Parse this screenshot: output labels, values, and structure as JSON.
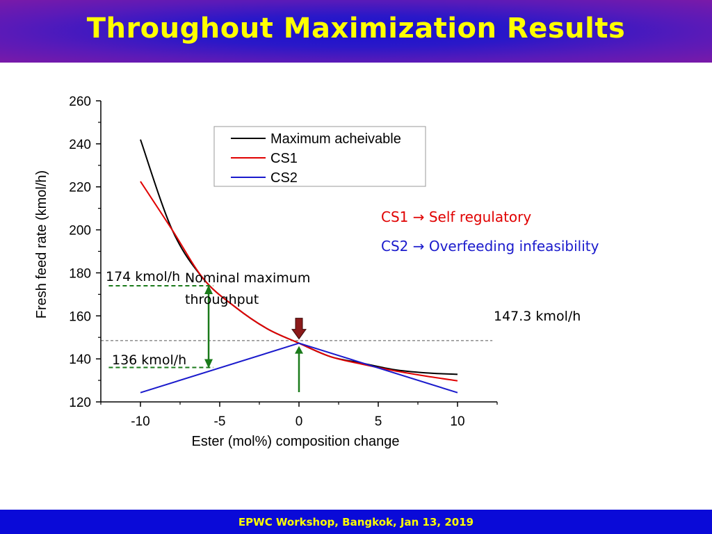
{
  "slide": {
    "title": "Throughout Maximization Results",
    "footer": "EPWC Workshop, Bangkok, Jan 13, 2019",
    "colors": {
      "title": "#ffff00",
      "footer_bg": "#0a0ad8",
      "header": "#2a18c8"
    }
  },
  "annotations": {
    "cs1": "CS1 → Self regulatory",
    "cs2": "CS2 → Overfeeding infeasibility",
    "label_174": "174 kmol/h",
    "label_136": "136 kmol/h",
    "label_147": "147.3 kmol/h",
    "nominal_line1": "Nominal maximum",
    "nominal_line2": "throughput",
    "cs1_color": "#e00000",
    "cs2_color": "#1a1acc"
  },
  "chart_data": {
    "type": "line",
    "xlabel": "Ester (mol%) composition change",
    "ylabel": "Fresh feed rate (kmol/h)",
    "xlim": [
      -12.5,
      12.5
    ],
    "ylim": [
      120,
      260
    ],
    "xticks": [
      -10,
      -5,
      0,
      5,
      10
    ],
    "yticks": [
      120,
      140,
      160,
      180,
      200,
      220,
      240,
      260
    ],
    "grid": false,
    "legend_position": "top-center",
    "nominal_level": 148.5,
    "series": [
      {
        "name": "Maximum acheivable",
        "color": "#000000",
        "x": [
          -10,
          -8,
          -6,
          -4,
          -2,
          0,
          2,
          4,
          6,
          8,
          10
        ],
        "y": [
          242,
          200,
          177,
          164,
          154,
          147.3,
          141,
          138,
          135,
          133.5,
          132.8
        ]
      },
      {
        "name": "CS1",
        "color": "#e00000",
        "x": [
          -10,
          -8,
          -6,
          -4,
          -2,
          0,
          2,
          4,
          6,
          8,
          10
        ],
        "y": [
          222.5,
          200,
          177,
          164,
          154,
          147.3,
          141,
          137.5,
          134.5,
          132,
          129.8
        ]
      },
      {
        "name": "CS2",
        "color": "#1a1acc",
        "x": [
          -10,
          0,
          10
        ],
        "y": [
          124.3,
          147.3,
          124.3
        ]
      }
    ]
  }
}
